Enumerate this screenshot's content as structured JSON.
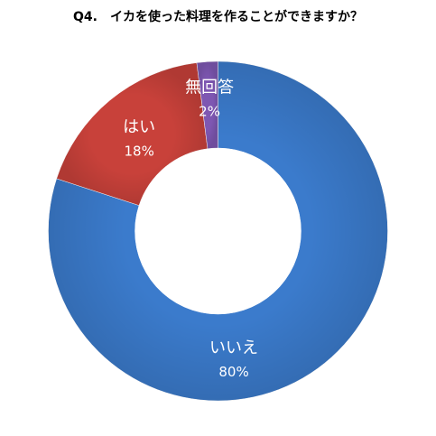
{
  "chart_data": {
    "type": "pie",
    "variant": "donut",
    "title": "Q4.　イカを使った料理を作ることができますか？",
    "slices": [
      {
        "label": "いいえ",
        "value": 80,
        "value_label": "80%",
        "color": "#3b7bcc"
      },
      {
        "label": "はい",
        "value": 18,
        "value_label": "18%",
        "color": "#c8413a"
      },
      {
        "label": "無回答",
        "value": 2,
        "value_label": "2%",
        "color": "#7e57b2"
      }
    ],
    "start": "12 o'clock",
    "direction": "clockwise",
    "legend": "none"
  }
}
